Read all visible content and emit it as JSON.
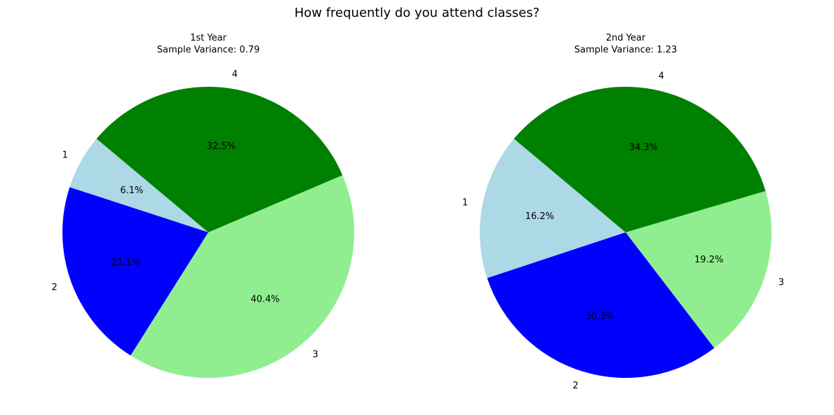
{
  "figure": {
    "title": "How frequently do you attend classes?"
  },
  "colors": {
    "1": "#add8e6",
    "2": "#0000ff",
    "3": "#90ee90",
    "4": "#008000"
  },
  "chart_data": [
    {
      "type": "pie",
      "title": "1st Year",
      "subtitle": "Sample Variance: 0.79",
      "categories": [
        "1",
        "2",
        "3",
        "4"
      ],
      "values": [
        6.1,
        21.1,
        40.4,
        32.5
      ],
      "value_labels": [
        "6.1%",
        "21.1%",
        "40.4%",
        "32.5%"
      ],
      "start_angle_deg": 140,
      "direction": "counterclockwise"
    },
    {
      "type": "pie",
      "title": "2nd Year",
      "subtitle": "Sample Variance: 1.23",
      "categories": [
        "1",
        "2",
        "3",
        "4"
      ],
      "values": [
        16.2,
        30.3,
        19.2,
        34.3
      ],
      "value_labels": [
        "16.2%",
        "30.3%",
        "19.2%",
        "34.3%"
      ],
      "start_angle_deg": 140,
      "direction": "counterclockwise"
    }
  ]
}
